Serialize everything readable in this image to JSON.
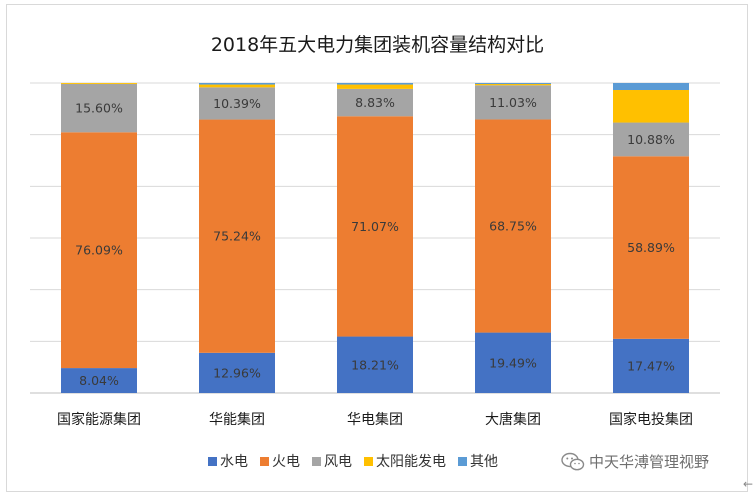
{
  "chart_data": {
    "type": "bar",
    "stacked": true,
    "title": "2018年五大电力集团装机容量结构对比",
    "categories": [
      "国家能源集团",
      "华能集团",
      "华电集团",
      "大唐集团",
      "国家电投集团"
    ],
    "ylim": [
      0,
      100
    ],
    "grid": true,
    "legend_position": "bottom",
    "series": [
      {
        "name": "水电",
        "color": "#4472c4",
        "values": [
          8.04,
          12.96,
          18.21,
          19.49,
          17.47
        ],
        "labels": [
          "8.04%",
          "12.96%",
          "18.21%",
          "19.49%",
          "17.47%"
        ]
      },
      {
        "name": "火电",
        "color": "#ed7d31",
        "values": [
          76.09,
          75.24,
          71.07,
          68.75,
          58.89
        ],
        "labels": [
          "76.09%",
          "75.24%",
          "71.07%",
          "68.75%",
          "58.89%"
        ]
      },
      {
        "name": "风电",
        "color": "#a5a5a5",
        "values": [
          15.6,
          10.39,
          8.83,
          11.03,
          10.88
        ],
        "labels": [
          "15.60%",
          "10.39%",
          "8.83%",
          "11.03%",
          "10.88%"
        ]
      },
      {
        "name": "太阳能发电",
        "color": "#ffc000",
        "values": [
          0.3,
          0.9,
          1.4,
          0.4,
          10.5
        ],
        "labels": [
          "",
          "",
          "",
          "",
          ""
        ]
      },
      {
        "name": "其他",
        "color": "#5b9bd5",
        "values": [
          0.0,
          0.5,
          0.5,
          0.33,
          2.26
        ],
        "labels": [
          "",
          "",
          "",
          "",
          ""
        ]
      }
    ]
  },
  "watermark": {
    "text": "中天华溥管理视野",
    "icon": "wechat-icon"
  },
  "scroll_indicator": "←"
}
